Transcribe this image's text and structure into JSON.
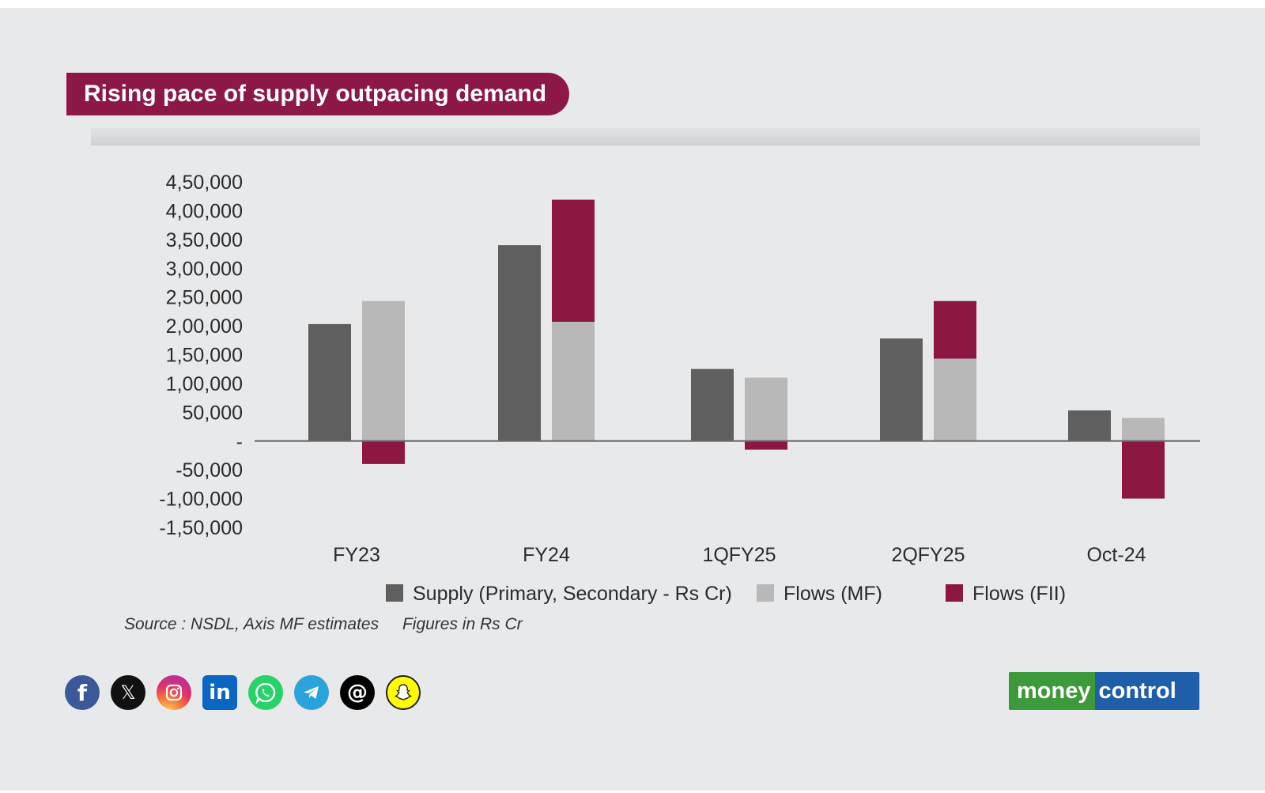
{
  "title": "Rising pace of supply outpacing demand",
  "source": "Source : NSDL, Axis MF estimates",
  "figures_note": "Figures in Rs Cr",
  "brand": {
    "part1": "money",
    "part2": "control",
    "green": "#3d9a3a",
    "blue": "#1f5ea8"
  },
  "social_icons": [
    "facebook-icon",
    "x-twitter-icon",
    "instagram-icon",
    "linkedin-icon",
    "whatsapp-icon",
    "telegram-icon",
    "threads-icon",
    "snapchat-icon"
  ],
  "colors": {
    "title_bg": "#8c1848",
    "supply": "#5f5f5f",
    "mf": "#b8b8b8",
    "fii": "#8c1743",
    "axis_text": "#2b2b2b"
  },
  "chart_data": {
    "type": "bar",
    "title": "Rising pace of supply outpacing demand",
    "xlabel": "",
    "ylabel": "",
    "categories": [
      "FY23",
      "FY24",
      "1QFY25",
      "2QFY25",
      "Oct-24"
    ],
    "series": [
      {
        "name": "Supply (Primary, Secondary - Rs Cr)",
        "stack": "supply",
        "values": [
          203000,
          340000,
          125000,
          178000,
          53000
        ]
      },
      {
        "name": "Flows (MF)",
        "stack": "flows",
        "values": [
          243000,
          207000,
          110000,
          143000,
          40000
        ]
      },
      {
        "name": "Flows (FII)",
        "stack": "flows",
        "values": [
          -40000,
          212000,
          -15000,
          100000,
          -100000
        ]
      }
    ],
    "ylim": [
      -150000,
      450000
    ],
    "yticks": [
      450000,
      400000,
      350000,
      300000,
      250000,
      200000,
      150000,
      100000,
      50000,
      0,
      -50000,
      -100000,
      -150000
    ],
    "ytick_labels": [
      "4,50,000",
      "4,00,000",
      "3,50,000",
      "3,00,000",
      "2,50,000",
      "2,00,000",
      "1,50,000",
      "1,00,000",
      "50,000",
      "-",
      "-50,000",
      "-1,00,000",
      "-1,50,000"
    ],
    "legend": [
      "Supply (Primary, Secondary - Rs Cr)",
      "Flows (MF)",
      "Flows (FII)"
    ],
    "legend_position": "bottom",
    "grid": false
  }
}
